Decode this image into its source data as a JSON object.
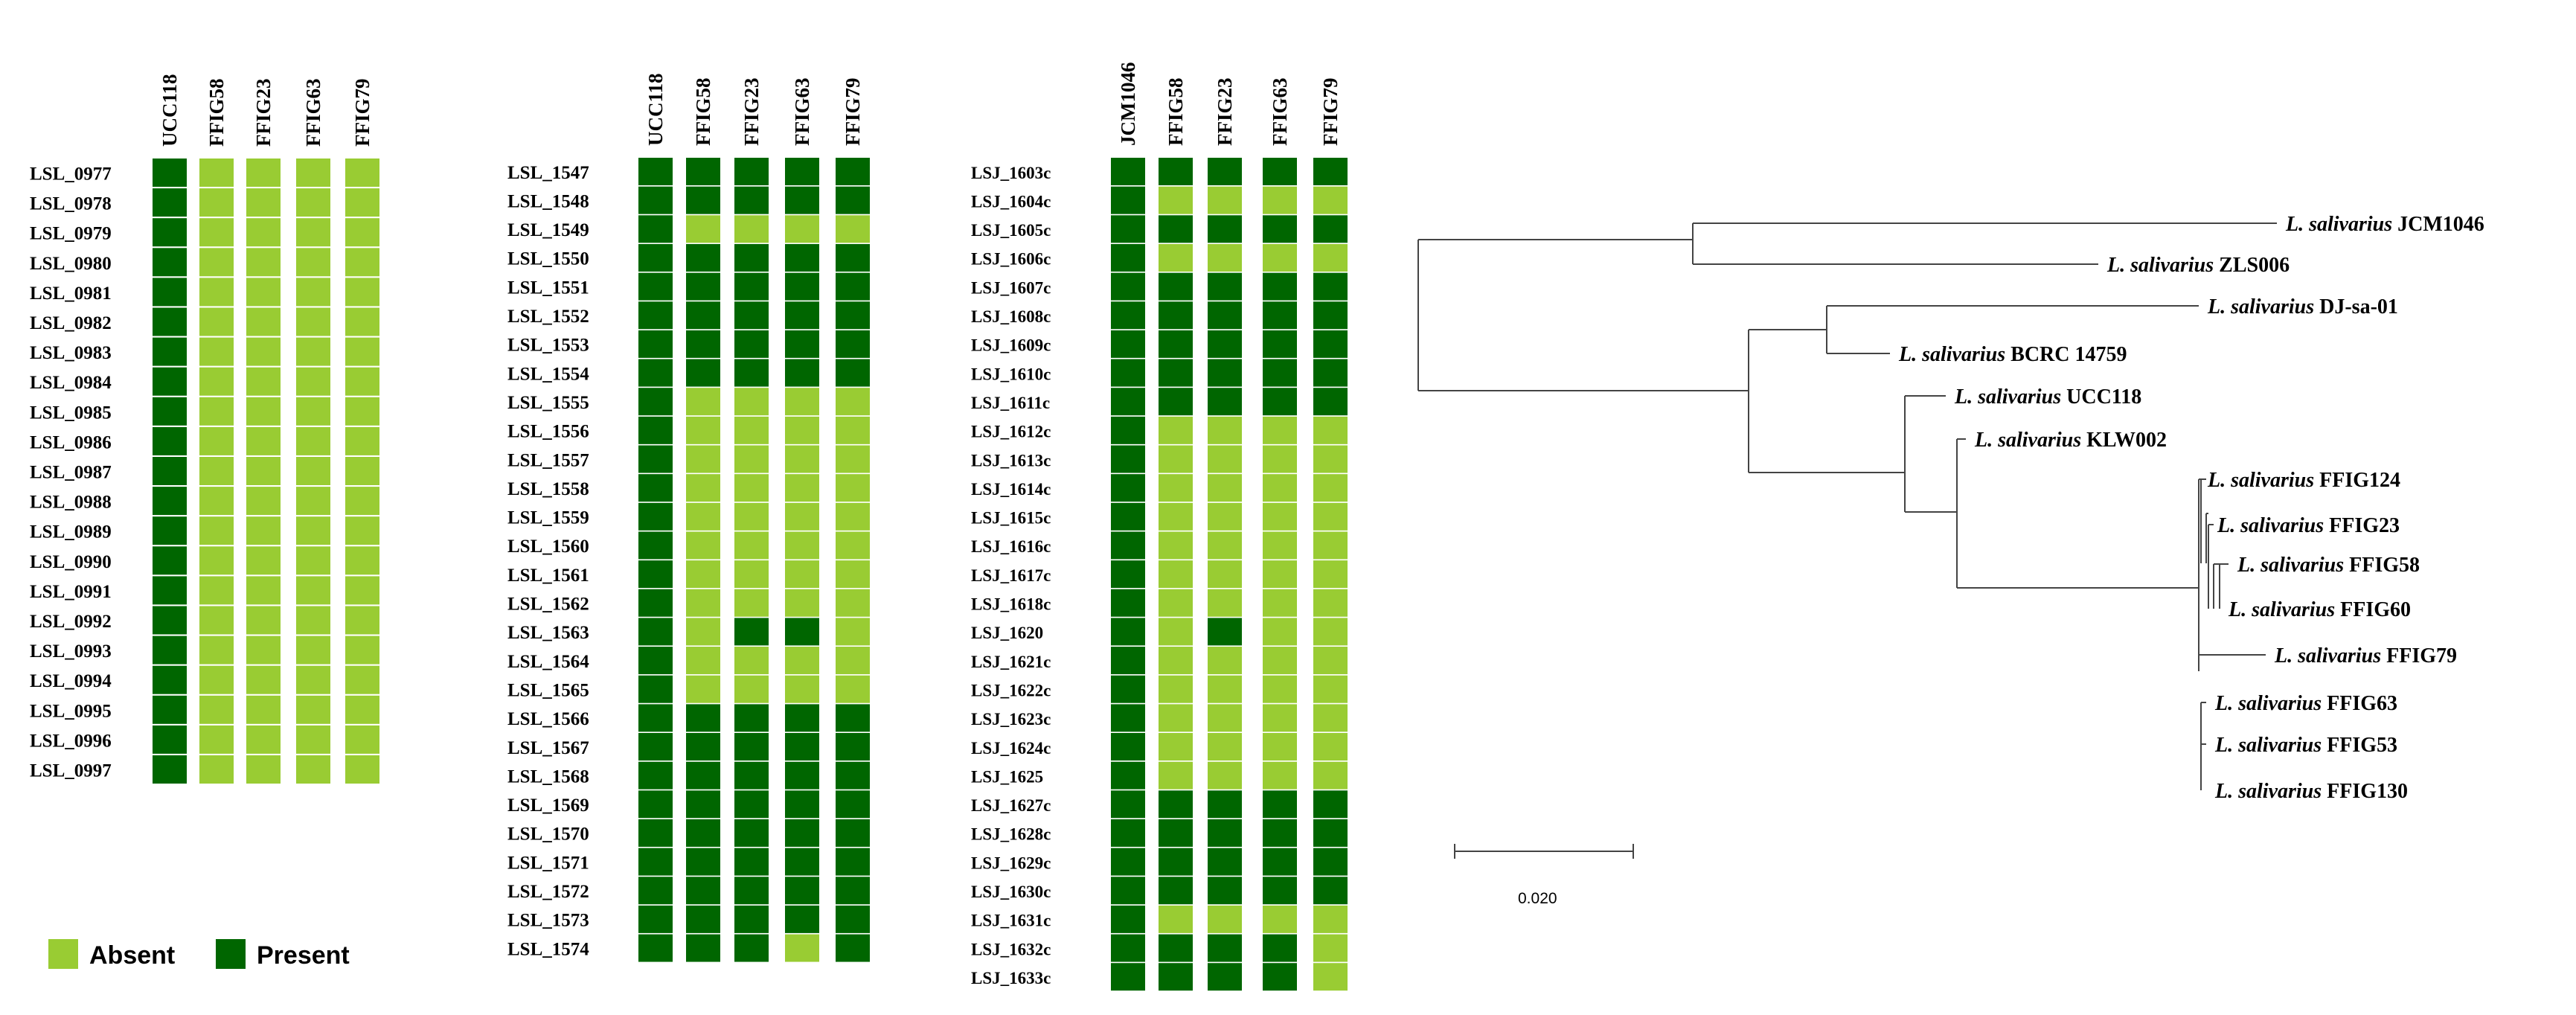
{
  "colors": {
    "absent": "#99cc33",
    "present": "#006600",
    "cell_gap": "#ffffff"
  },
  "legend": {
    "absent_label": "Absent",
    "present_label": "Present"
  },
  "panels": [
    {
      "columns": [
        "UCC118",
        "FFIG58",
        "FFIG23",
        "FFIG63",
        "FFIG79"
      ],
      "rows": [
        {
          "gene": "LSL_0977",
          "presence": [
            1,
            0,
            0,
            0,
            0
          ]
        },
        {
          "gene": "LSL_0978",
          "presence": [
            1,
            0,
            0,
            0,
            0
          ]
        },
        {
          "gene": "LSL_0979",
          "presence": [
            1,
            0,
            0,
            0,
            0
          ]
        },
        {
          "gene": "LSL_0980",
          "presence": [
            1,
            0,
            0,
            0,
            0
          ]
        },
        {
          "gene": "LSL_0981",
          "presence": [
            1,
            0,
            0,
            0,
            0
          ]
        },
        {
          "gene": "LSL_0982",
          "presence": [
            1,
            0,
            0,
            0,
            0
          ]
        },
        {
          "gene": "LSL_0983",
          "presence": [
            1,
            0,
            0,
            0,
            0
          ]
        },
        {
          "gene": "LSL_0984",
          "presence": [
            1,
            0,
            0,
            0,
            0
          ]
        },
        {
          "gene": "LSL_0985",
          "presence": [
            1,
            0,
            0,
            0,
            0
          ]
        },
        {
          "gene": "LSL_0986",
          "presence": [
            1,
            0,
            0,
            0,
            0
          ]
        },
        {
          "gene": "LSL_0987",
          "presence": [
            1,
            0,
            0,
            0,
            0
          ]
        },
        {
          "gene": "LSL_0988",
          "presence": [
            1,
            0,
            0,
            0,
            0
          ]
        },
        {
          "gene": "LSL_0989",
          "presence": [
            1,
            0,
            0,
            0,
            0
          ]
        },
        {
          "gene": "LSL_0990",
          "presence": [
            1,
            0,
            0,
            0,
            0
          ]
        },
        {
          "gene": "LSL_0991",
          "presence": [
            1,
            0,
            0,
            0,
            0
          ]
        },
        {
          "gene": "LSL_0992",
          "presence": [
            1,
            0,
            0,
            0,
            0
          ]
        },
        {
          "gene": "LSL_0993",
          "presence": [
            1,
            0,
            0,
            0,
            0
          ]
        },
        {
          "gene": "LSL_0994",
          "presence": [
            1,
            0,
            0,
            0,
            0
          ]
        },
        {
          "gene": "LSL_0995",
          "presence": [
            1,
            0,
            0,
            0,
            0
          ]
        },
        {
          "gene": "LSL_0996",
          "presence": [
            1,
            0,
            0,
            0,
            0
          ]
        },
        {
          "gene": "LSL_0997",
          "presence": [
            1,
            0,
            0,
            0,
            0
          ]
        }
      ]
    },
    {
      "columns": [
        "UCC118",
        "FFIG58",
        "FFIG23",
        "FFIG63",
        "FFIG79"
      ],
      "rows": [
        {
          "gene": "LSL_1547",
          "presence": [
            1,
            1,
            1,
            1,
            1
          ]
        },
        {
          "gene": "LSL_1548",
          "presence": [
            1,
            1,
            1,
            1,
            1
          ]
        },
        {
          "gene": "LSL_1549",
          "presence": [
            1,
            0,
            0,
            0,
            0
          ]
        },
        {
          "gene": "LSL_1550",
          "presence": [
            1,
            1,
            1,
            1,
            1
          ]
        },
        {
          "gene": "LSL_1551",
          "presence": [
            1,
            1,
            1,
            1,
            1
          ]
        },
        {
          "gene": "LSL_1552",
          "presence": [
            1,
            1,
            1,
            1,
            1
          ]
        },
        {
          "gene": "LSL_1553",
          "presence": [
            1,
            1,
            1,
            1,
            1
          ]
        },
        {
          "gene": "LSL_1554",
          "presence": [
            1,
            1,
            1,
            1,
            1
          ]
        },
        {
          "gene": "LSL_1555",
          "presence": [
            1,
            0,
            0,
            0,
            0
          ]
        },
        {
          "gene": "LSL_1556",
          "presence": [
            1,
            0,
            0,
            0,
            0
          ]
        },
        {
          "gene": "LSL_1557",
          "presence": [
            1,
            0,
            0,
            0,
            0
          ]
        },
        {
          "gene": "LSL_1558",
          "presence": [
            1,
            0,
            0,
            0,
            0
          ]
        },
        {
          "gene": "LSL_1559",
          "presence": [
            1,
            0,
            0,
            0,
            0
          ]
        },
        {
          "gene": "LSL_1560",
          "presence": [
            1,
            0,
            0,
            0,
            0
          ]
        },
        {
          "gene": "LSL_1561",
          "presence": [
            1,
            0,
            0,
            0,
            0
          ]
        },
        {
          "gene": "LSL_1562",
          "presence": [
            1,
            0,
            0,
            0,
            0
          ]
        },
        {
          "gene": "LSL_1563",
          "presence": [
            1,
            0,
            1,
            1,
            0
          ]
        },
        {
          "gene": "LSL_1564",
          "presence": [
            1,
            0,
            0,
            0,
            0
          ]
        },
        {
          "gene": "LSL_1565",
          "presence": [
            1,
            0,
            0,
            0,
            0
          ]
        },
        {
          "gene": "LSL_1566",
          "presence": [
            1,
            1,
            1,
            1,
            1
          ]
        },
        {
          "gene": "LSL_1567",
          "presence": [
            1,
            1,
            1,
            1,
            1
          ]
        },
        {
          "gene": "LSL_1568",
          "presence": [
            1,
            1,
            1,
            1,
            1
          ]
        },
        {
          "gene": "LSL_1569",
          "presence": [
            1,
            1,
            1,
            1,
            1
          ]
        },
        {
          "gene": "LSL_1570",
          "presence": [
            1,
            1,
            1,
            1,
            1
          ]
        },
        {
          "gene": "LSL_1571",
          "presence": [
            1,
            1,
            1,
            1,
            1
          ]
        },
        {
          "gene": "LSL_1572",
          "presence": [
            1,
            1,
            1,
            1,
            1
          ]
        },
        {
          "gene": "LSL_1573",
          "presence": [
            1,
            1,
            1,
            1,
            1
          ]
        },
        {
          "gene": "LSL_1574",
          "presence": [
            1,
            1,
            1,
            0,
            1
          ]
        }
      ]
    },
    {
      "columns": [
        "JCM1046",
        "FFIG58",
        "FFIG23",
        "FFIG63",
        "FFIG79"
      ],
      "rows": [
        {
          "gene": "LSJ_1603c",
          "presence": [
            1,
            1,
            1,
            1,
            1
          ]
        },
        {
          "gene": "LSJ_1604c",
          "presence": [
            1,
            0,
            0,
            0,
            0
          ]
        },
        {
          "gene": "LSJ_1605c",
          "presence": [
            1,
            1,
            1,
            1,
            1
          ]
        },
        {
          "gene": "LSJ_1606c",
          "presence": [
            1,
            0,
            0,
            0,
            0
          ]
        },
        {
          "gene": "LSJ_1607c",
          "presence": [
            1,
            1,
            1,
            1,
            1
          ]
        },
        {
          "gene": "LSJ_1608c",
          "presence": [
            1,
            1,
            1,
            1,
            1
          ]
        },
        {
          "gene": "LSJ_1609c",
          "presence": [
            1,
            1,
            1,
            1,
            1
          ]
        },
        {
          "gene": "LSJ_1610c",
          "presence": [
            1,
            1,
            1,
            1,
            1
          ]
        },
        {
          "gene": "LSJ_1611c",
          "presence": [
            1,
            1,
            1,
            1,
            1
          ]
        },
        {
          "gene": "LSJ_1612c",
          "presence": [
            1,
            0,
            0,
            0,
            0
          ]
        },
        {
          "gene": "LSJ_1613c",
          "presence": [
            1,
            0,
            0,
            0,
            0
          ]
        },
        {
          "gene": "LSJ_1614c",
          "presence": [
            1,
            0,
            0,
            0,
            0
          ]
        },
        {
          "gene": "LSJ_1615c",
          "presence": [
            1,
            0,
            0,
            0,
            0
          ]
        },
        {
          "gene": "LSJ_1616c",
          "presence": [
            1,
            0,
            0,
            0,
            0
          ]
        },
        {
          "gene": "LSJ_1617c",
          "presence": [
            1,
            0,
            0,
            0,
            0
          ]
        },
        {
          "gene": "LSJ_1618c",
          "presence": [
            1,
            0,
            0,
            0,
            0
          ]
        },
        {
          "gene": "LSJ_1620",
          "presence": [
            1,
            0,
            1,
            0,
            0
          ]
        },
        {
          "gene": "LSJ_1621c",
          "presence": [
            1,
            0,
            0,
            0,
            0
          ]
        },
        {
          "gene": "LSJ_1622c",
          "presence": [
            1,
            0,
            0,
            0,
            0
          ]
        },
        {
          "gene": "LSJ_1623c",
          "presence": [
            1,
            0,
            0,
            0,
            0
          ]
        },
        {
          "gene": "LSJ_1624c",
          "presence": [
            1,
            0,
            0,
            0,
            0
          ]
        },
        {
          "gene": "LSJ_1625",
          "presence": [
            1,
            0,
            0,
            0,
            0
          ]
        },
        {
          "gene": "LSJ_1627c",
          "presence": [
            1,
            1,
            1,
            1,
            1
          ]
        },
        {
          "gene": "LSJ_1628c",
          "presence": [
            1,
            1,
            1,
            1,
            1
          ]
        },
        {
          "gene": "LSJ_1629c",
          "presence": [
            1,
            1,
            1,
            1,
            1
          ]
        },
        {
          "gene": "LSJ_1630c",
          "presence": [
            1,
            1,
            1,
            1,
            1
          ]
        },
        {
          "gene": "LSJ_1631c",
          "presence": [
            1,
            0,
            0,
            0,
            0
          ]
        },
        {
          "gene": "LSJ_1632c",
          "presence": [
            1,
            1,
            1,
            1,
            0
          ]
        },
        {
          "gene": "LSJ_1633c",
          "presence": [
            1,
            1,
            1,
            1,
            0
          ]
        }
      ]
    }
  ],
  "tree": {
    "species_prefix": "L. salivarius",
    "leaves": [
      "JCM1046",
      "ZLS006",
      "DJ-sa-01",
      "BCRC 14759",
      "UCC118",
      "KLW002",
      "FFIG124",
      "FFIG23",
      "FFIG58",
      "FFIG60",
      "FFIG79",
      "FFIG63",
      "FFIG53",
      "FFIG130"
    ],
    "scale_label": "0.020"
  }
}
